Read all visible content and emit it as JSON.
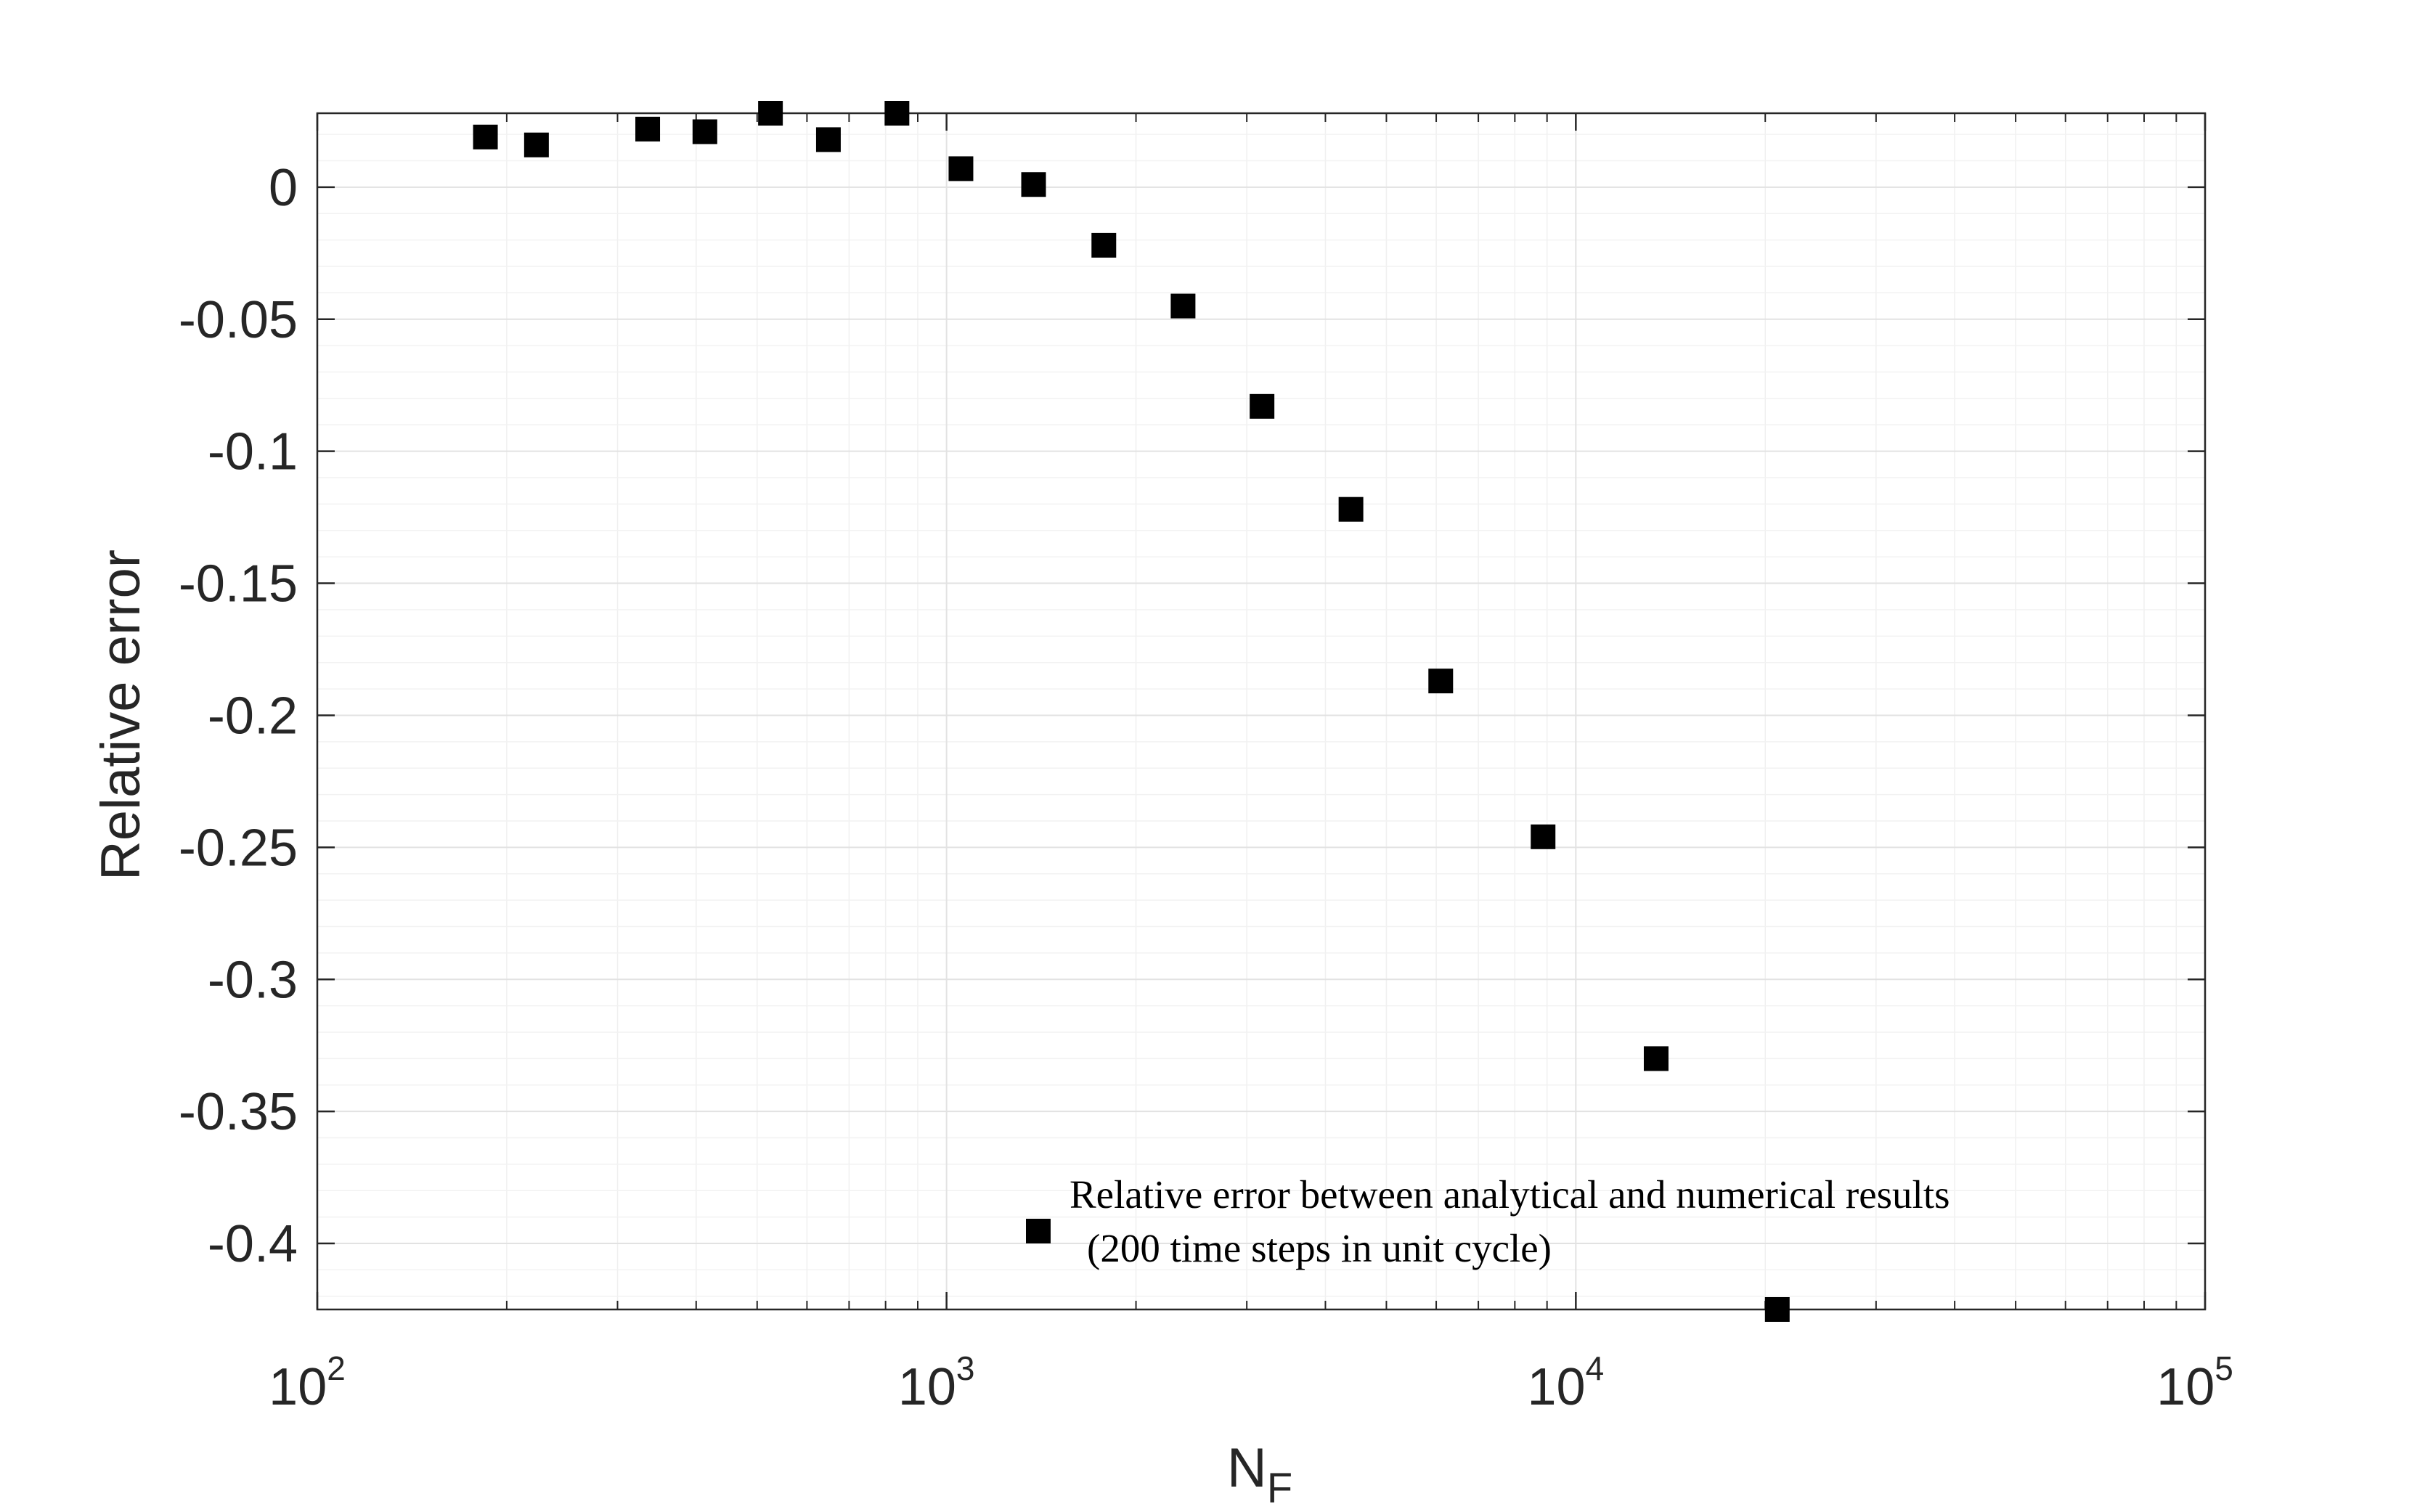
{
  "chart_data": {
    "type": "scatter",
    "xlabel": "N",
    "xlabel_sub": "F",
    "ylabel": "Relative error",
    "xscale": "log",
    "xlim": [
      100,
      100000
    ],
    "ylim": [
      -0.425,
      0.028
    ],
    "grid": true,
    "minor_grid": true,
    "x_tick_labels": [
      {
        "base": "10",
        "exp": "2",
        "value": 100
      },
      {
        "base": "10",
        "exp": "3",
        "value": 1000
      },
      {
        "base": "10",
        "exp": "4",
        "value": 10000
      },
      {
        "base": "10",
        "exp": "5",
        "value": 100000
      }
    ],
    "y_ticks": [
      0,
      -0.05,
      -0.1,
      -0.15,
      -0.2,
      -0.25,
      -0.3,
      -0.35,
      -0.4
    ],
    "y_tick_labels": [
      "0",
      "-0.05",
      "-0.1",
      "-0.15",
      "-0.2",
      "-0.25",
      "-0.3",
      "-0.35",
      "-0.4"
    ],
    "legend_position": "bottom-right",
    "series": [
      {
        "name": "Relative error between analytical and numerical results (200 time steps in unit cycle)",
        "legend_lines": [
          "Relative error between analytical and numerical results",
          "(200 time steps in unit cycle)"
        ],
        "marker": "square",
        "color": "#000000",
        "points": [
          {
            "x": 185,
            "y": 0.019
          },
          {
            "x": 223,
            "y": 0.016
          },
          {
            "x": 335,
            "y": 0.022
          },
          {
            "x": 413,
            "y": 0.021
          },
          {
            "x": 525,
            "y": 0.028
          },
          {
            "x": 649,
            "y": 0.018
          },
          {
            "x": 834,
            "y": 0.028
          },
          {
            "x": 1054,
            "y": 0.007
          },
          {
            "x": 1375,
            "y": 0.001
          },
          {
            "x": 1778,
            "y": -0.022
          },
          {
            "x": 2376,
            "y": -0.045
          },
          {
            "x": 3172,
            "y": -0.083
          },
          {
            "x": 4392,
            "y": -0.122
          },
          {
            "x": 6100,
            "y": -0.187
          },
          {
            "x": 8871,
            "y": -0.246
          },
          {
            "x": 13417,
            "y": -0.33
          },
          {
            "x": 20900,
            "y": -0.425
          }
        ]
      }
    ]
  }
}
